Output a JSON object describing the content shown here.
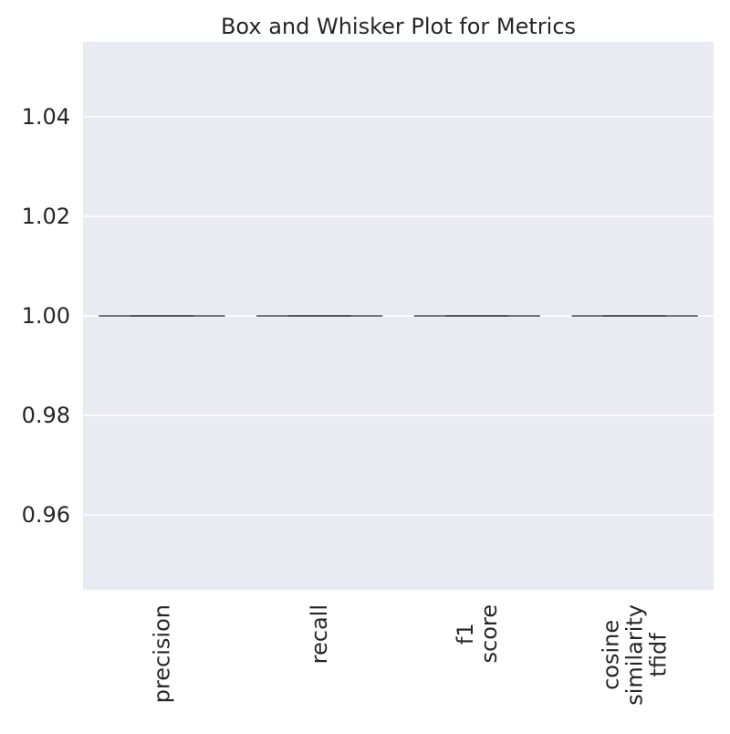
{
  "chart_data": {
    "type": "box",
    "title": "Box and Whisker Plot for Metrics",
    "xlabel": "",
    "ylabel": "",
    "ylim": [
      0.945,
      1.055
    ],
    "yticks": [
      "0.96",
      "0.98",
      "1.00",
      "1.02",
      "1.04"
    ],
    "ytick_values": [
      0.96,
      0.98,
      1.0,
      1.02,
      1.04
    ],
    "categories": [
      [
        "precision"
      ],
      [
        "recall"
      ],
      [
        "f1",
        "score"
      ],
      [
        "cosine",
        "similarity",
        "tfidf"
      ]
    ],
    "boxes": [
      {
        "min": 1.0,
        "q1": 1.0,
        "median": 1.0,
        "q3": 1.0,
        "max": 1.0
      },
      {
        "min": 1.0,
        "q1": 1.0,
        "median": 1.0,
        "q3": 1.0,
        "max": 1.0
      },
      {
        "min": 1.0,
        "q1": 1.0,
        "median": 1.0,
        "q3": 1.0,
        "max": 1.0
      },
      {
        "min": 1.0,
        "q1": 1.0,
        "median": 1.0,
        "q3": 1.0,
        "max": 1.0
      }
    ],
    "grid": true,
    "colors": {
      "plot_background": "#eaeaf2",
      "grid": "#ffffff",
      "box_line": "#4a4a4a",
      "text": "#262626"
    }
  }
}
